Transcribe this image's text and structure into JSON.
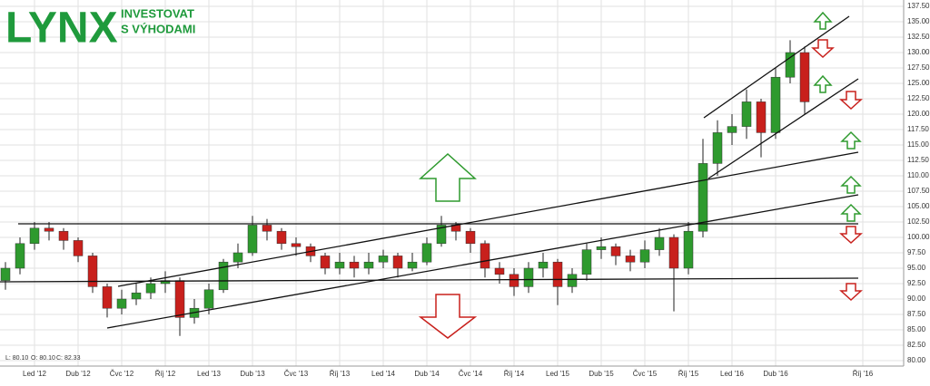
{
  "brand": {
    "logo": "LYNX",
    "tagline": [
      "INVESTOVAT",
      "S VÝHODAMI"
    ]
  },
  "footer": [
    "L: 80.10",
    "O: 80.10",
    "C: 82.33"
  ],
  "chart_data": {
    "type": "candlestick",
    "categories": [
      null,
      null,
      "Led '12",
      null,
      null,
      "Dub '12",
      null,
      null,
      "Čvc '12",
      null,
      null,
      "Říj '12",
      null,
      null,
      "Led '13",
      null,
      null,
      "Dub '13",
      null,
      null,
      "Čvc '13",
      null,
      null,
      "Říj '13",
      null,
      null,
      "Led '14",
      null,
      null,
      "Dub '14",
      null,
      null,
      "Čvc '14",
      null,
      null,
      "Říj '14",
      null,
      null,
      "Led '15",
      null,
      null,
      "Dub '15",
      null,
      null,
      "Čvc '15",
      null,
      null,
      "Říj '15",
      null,
      null,
      "Led '16",
      null,
      null,
      "Dub '16",
      null,
      null,
      null,
      null,
      null,
      "Říj '16"
    ],
    "open": [
      93,
      95,
      99,
      101.5,
      101,
      99.5,
      97,
      92,
      88.5,
      90,
      91,
      92.5,
      93,
      87,
      88.5,
      91.5,
      96,
      97.5,
      102,
      101,
      99,
      98.5,
      97,
      95,
      96,
      95,
      96,
      97,
      95,
      96,
      99,
      102,
      101,
      99,
      95,
      94,
      92,
      95,
      96,
      92,
      94,
      98,
      98.5,
      97,
      96,
      98,
      100,
      95,
      101,
      112,
      117,
      118,
      122,
      117,
      126,
      130,
      null,
      null,
      null,
      null
    ],
    "high": [
      96,
      100,
      102.5,
      102.5,
      101.5,
      100,
      97.5,
      92.5,
      91.5,
      92.5,
      93.5,
      94.5,
      93.5,
      90,
      92.5,
      96.5,
      99,
      103.5,
      103,
      101.5,
      100,
      99,
      97.5,
      97.5,
      97,
      97.5,
      98,
      97.5,
      97.5,
      100,
      103.5,
      102.5,
      101.5,
      99.5,
      96,
      95,
      96,
      97.5,
      96.5,
      95,
      99,
      100,
      99,
      98,
      99.5,
      101.5,
      100.5,
      102.5,
      116,
      119,
      120,
      124,
      122.5,
      127.5,
      132,
      131,
      null,
      null,
      null,
      null
    ],
    "low": [
      91.5,
      94,
      98,
      99.5,
      98,
      96,
      91,
      87,
      87.5,
      89,
      90,
      91,
      84,
      86,
      87.5,
      91,
      95,
      97,
      99.5,
      98,
      97,
      96,
      94,
      94,
      93.5,
      94,
      95,
      93.5,
      94.5,
      95.5,
      98.5,
      99.5,
      97.5,
      93.5,
      92.5,
      90.5,
      91,
      93.5,
      89,
      91,
      93,
      96.5,
      95.5,
      94.5,
      95,
      97,
      88,
      94,
      100,
      110,
      115,
      116,
      113,
      116,
      125,
      120,
      null,
      null,
      null,
      null
    ],
    "close": [
      95,
      99,
      101.5,
      101,
      99.5,
      97,
      92,
      88.5,
      90,
      91,
      92.5,
      93,
      87,
      88.5,
      91.5,
      96,
      97.5,
      102,
      101,
      99,
      98.5,
      97,
      95,
      96,
      95,
      96,
      97,
      95,
      96,
      99,
      102,
      101,
      99,
      95,
      94,
      92,
      95,
      96,
      92,
      94,
      98,
      98.5,
      97,
      96,
      98,
      100,
      95,
      101,
      112,
      117,
      118,
      122,
      117,
      126,
      130,
      122,
      null,
      null,
      null,
      null
    ],
    "up_color": "#2e9a2e",
    "down_color": "#c8201c",
    "ylim": [
      80,
      137.5
    ],
    "yticks": [
      {
        "value": 80,
        "label": "80.00"
      },
      {
        "value": 82.5,
        "label": "82.50"
      },
      {
        "value": 85,
        "label": "85.00"
      },
      {
        "value": 87.5,
        "label": "87.50"
      },
      {
        "value": 90,
        "label": "90.00"
      },
      {
        "value": 92.5,
        "label": "92.50"
      },
      {
        "value": 95,
        "label": "95.00"
      },
      {
        "value": 97.5,
        "label": "97.50"
      },
      {
        "value": 100,
        "label": "100.00"
      },
      {
        "value": 102.5,
        "label": "102.50"
      },
      {
        "value": 105,
        "label": "105.00"
      },
      {
        "value": 107.5,
        "label": "107.50"
      },
      {
        "value": 110,
        "label": "110.00"
      },
      {
        "value": 112.5,
        "label": "112.50"
      },
      {
        "value": 115,
        "label": "115.00"
      },
      {
        "value": 117.5,
        "label": "117.50"
      },
      {
        "value": 120,
        "label": "120.00"
      },
      {
        "value": 122.5,
        "label": "122.50"
      },
      {
        "value": 125,
        "label": "125.00"
      },
      {
        "value": 127.5,
        "label": "127.50"
      },
      {
        "value": 130,
        "label": "130.00"
      },
      {
        "value": 132.5,
        "label": "132.50"
      },
      {
        "value": 135,
        "label": "135.00"
      },
      {
        "value": 137.5,
        "label": "137.50"
      }
    ],
    "grid": true
  }
}
